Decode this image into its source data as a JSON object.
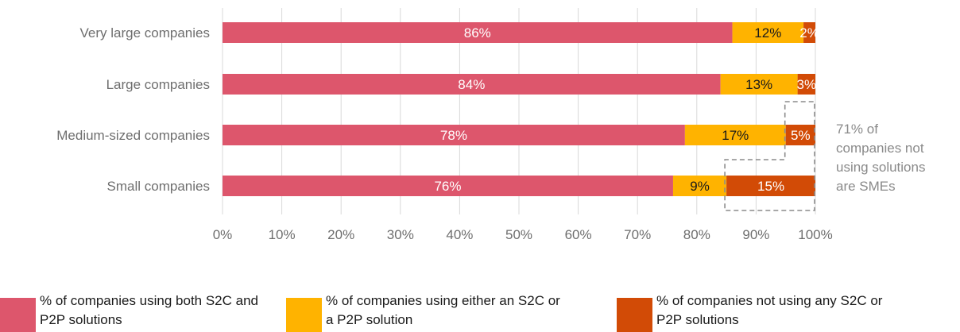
{
  "chart_data": {
    "type": "bar",
    "orientation": "horizontal",
    "stacked": true,
    "categories": [
      "Very large companies",
      "Large companies",
      "Medium-sized companies",
      "Small companies"
    ],
    "series": [
      {
        "legend_label": "% of companies using both S2C and P2P solutions",
        "values": [
          86,
          84,
          78,
          76
        ],
        "labels": [
          "86%",
          "84%",
          "78%",
          "76%"
        ],
        "color": "#dd566c",
        "label_color": "#ffffff"
      },
      {
        "legend_label": "% of companies using either an S2C or a P2P solution",
        "values": [
          12,
          13,
          17,
          9
        ],
        "labels": [
          "12%",
          "13%",
          "17%",
          "9%"
        ],
        "color": "#ffb300",
        "label_color": "#1a1a1a"
      },
      {
        "legend_label": "% of companies not using any S2C or P2P solutions",
        "values": [
          2,
          3,
          5,
          15
        ],
        "labels": [
          "2%",
          "3%",
          "5%",
          "15%"
        ],
        "color": "#d24b06",
        "label_color": "#ffffff"
      }
    ],
    "xlim": [
      0,
      100
    ],
    "xticks": [
      0,
      10,
      20,
      30,
      40,
      50,
      60,
      70,
      80,
      90,
      100
    ],
    "xtick_labels": [
      "0%",
      "10%",
      "20%",
      "30%",
      "40%",
      "50%",
      "60%",
      "70%",
      "80%",
      "90%",
      "100%"
    ],
    "grid": "vertical",
    "legend_position": "bottom",
    "annotation": {
      "lines": [
        "71% of",
        "companies not",
        "using solutions",
        "are SMEs"
      ],
      "highlighted_categories": [
        "Medium-sized companies",
        "Small companies"
      ],
      "highlighted_series": "% of companies not using any S2C or P2P solutions"
    }
  },
  "colors": {
    "grid": "#d9d9d9",
    "axis_text": "#6e6e6e",
    "annotation_text": "#8a8a8a",
    "dashed_box": "#8c8c8c"
  }
}
